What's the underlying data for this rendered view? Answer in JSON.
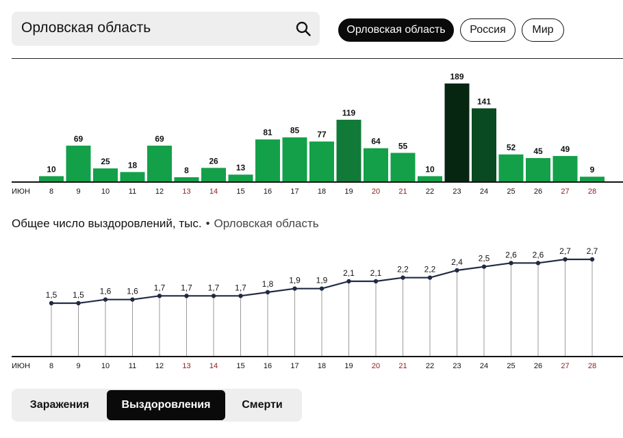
{
  "search": {
    "value": "Орловская область"
  },
  "region_pills": [
    {
      "label": "Орловская область",
      "active": true
    },
    {
      "label": "Россия",
      "active": false
    },
    {
      "label": "Мир",
      "active": false
    }
  ],
  "colors": {
    "bar_light": "#13a049",
    "bar_mid": "#117a38",
    "bar_dark": "#0a4a22",
    "bar_darkest": "#062612",
    "weekend_tick": "#8b1a1a",
    "line": "#1f2a44"
  },
  "month_label": "ИЮН",
  "weekend_days": [
    "13",
    "14",
    "20",
    "21",
    "27",
    "28"
  ],
  "chart_data": [
    {
      "type": "bar",
      "title": "",
      "categories": [
        "8",
        "9",
        "10",
        "11",
        "12",
        "13",
        "14",
        "15",
        "16",
        "17",
        "18",
        "19",
        "20",
        "21",
        "22",
        "23",
        "24",
        "25",
        "26",
        "27",
        "28"
      ],
      "values": [
        10,
        69,
        25,
        18,
        69,
        8,
        26,
        13,
        81,
        85,
        77,
        119,
        64,
        55,
        10,
        189,
        141,
        52,
        45,
        49,
        9
      ],
      "xlabel": "ИЮН",
      "ylabel": ""
    },
    {
      "type": "line",
      "title": "Общее число выздоровлений, тыс.",
      "subtitle": "Орловская область",
      "categories": [
        "8",
        "9",
        "10",
        "11",
        "12",
        "13",
        "14",
        "15",
        "16",
        "17",
        "18",
        "19",
        "20",
        "21",
        "22",
        "23",
        "24",
        "25",
        "26",
        "27",
        "28"
      ],
      "values": [
        1.5,
        1.5,
        1.6,
        1.6,
        1.7,
        1.7,
        1.7,
        1.7,
        1.8,
        1.9,
        1.9,
        2.1,
        2.1,
        2.2,
        2.2,
        2.4,
        2.5,
        2.6,
        2.6,
        2.7,
        2.7
      ],
      "labels": [
        "1,5",
        "1,5",
        "1,6",
        "1,6",
        "1,7",
        "1,7",
        "1,7",
        "1,7",
        "1,8",
        "1,9",
        "1,9",
        "2,1",
        "2,1",
        "2,2",
        "2,2",
        "2,4",
        "2,5",
        "2,6",
        "2,6",
        "2,7",
        "2,7"
      ],
      "xlabel": "ИЮН",
      "ylabel": ""
    }
  ],
  "chart_title": {
    "title": "Общее число выздоровлений, тыс.",
    "separator": "•",
    "region": "Орловская область"
  },
  "tabs": [
    {
      "label": "Заражения",
      "active": false
    },
    {
      "label": "Выздоровления",
      "active": true
    },
    {
      "label": "Смерти",
      "active": false
    }
  ]
}
